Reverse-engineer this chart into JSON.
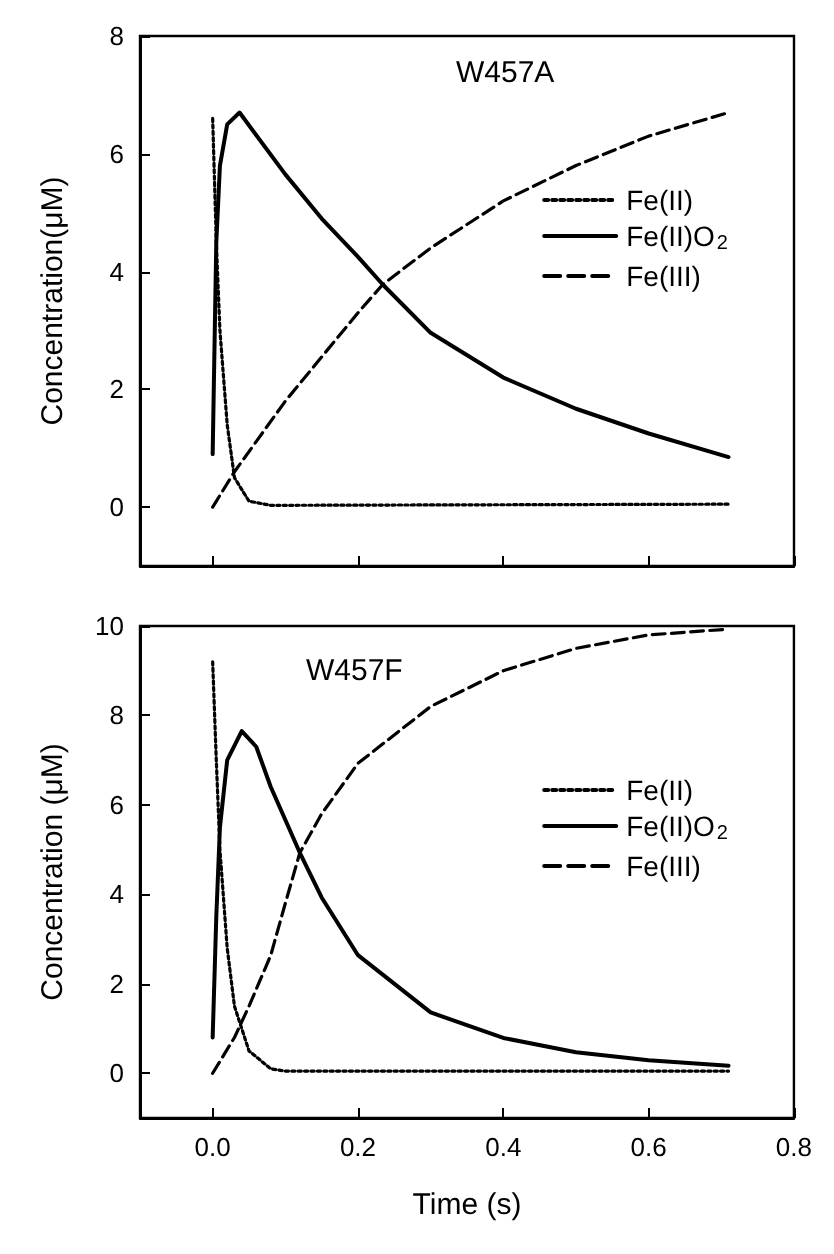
{
  "chart_data": [
    {
      "type": "line",
      "title": "W457A",
      "ylabel": "Concentration(μM)",
      "xlim": [
        -0.1,
        0.8
      ],
      "xticks": [
        0,
        0.2,
        0.4,
        0.6,
        0.8
      ],
      "ylim": [
        -1,
        8
      ],
      "yticks": [
        0,
        2,
        4,
        6,
        8
      ],
      "tick_labels": "y",
      "grid": false,
      "legend": "top right",
      "marker": "none",
      "series": [
        {
          "name": "Fe(II)",
          "color": "#000000",
          "line_style": "dotted",
          "x": [
            0,
            0.005,
            0.01,
            0.02,
            0.03,
            0.05,
            0.08,
            0.71
          ],
          "values": [
            6.6,
            4.5,
            3.0,
            1.4,
            0.5,
            0.1,
            0.03,
            0.05
          ]
        },
        {
          "name": "Fe(II)O$_{2}$",
          "color": "#000000",
          "line_style": "solid",
          "x": [
            0,
            0.005,
            0.01,
            0.02,
            0.037,
            0.1,
            0.15,
            0.2,
            0.234,
            0.3,
            0.4,
            0.5,
            0.6,
            0.71
          ],
          "values": [
            0.9,
            4.5,
            5.8,
            6.5,
            6.7,
            5.65,
            4.9,
            4.25,
            3.78,
            2.96,
            2.2,
            1.67,
            1.25,
            0.85
          ]
        },
        {
          "name": "Fe(III)",
          "color": "#000000",
          "line_style": "dashed",
          "x": [
            0,
            0.03,
            0.1,
            0.2,
            0.234,
            0.3,
            0.4,
            0.5,
            0.6,
            0.71
          ],
          "values": [
            0,
            0.6,
            1.8,
            3.3,
            3.78,
            4.4,
            5.2,
            5.8,
            6.3,
            6.7
          ]
        }
      ]
    },
    {
      "type": "line",
      "title": "W457F",
      "xlabel": "Time (s)",
      "ylabel": "Concentration (μM)",
      "xlim": [
        -0.1,
        0.8
      ],
      "xticks": [
        {
          "value": 0,
          "label": "0.0"
        },
        0.2,
        0.4,
        0.6,
        0.8
      ],
      "ylim": [
        -1,
        10
      ],
      "yticks": [
        0,
        2,
        4,
        6,
        8,
        10
      ],
      "grid": false,
      "legend": "top right",
      "marker": "none",
      "series": [
        {
          "name": "Fe(II)",
          "color": "#000000",
          "line_style": "dotted",
          "x": [
            0,
            0.005,
            0.01,
            0.02,
            0.03,
            0.05,
            0.08,
            0.1,
            0.71
          ],
          "values": [
            9.2,
            7.0,
            5.0,
            2.8,
            1.5,
            0.5,
            0.1,
            0.05,
            0.05
          ]
        },
        {
          "name": "Fe(II)O$_{2}$",
          "color": "#000000",
          "line_style": "solid",
          "x": [
            0,
            0.005,
            0.01,
            0.02,
            0.04,
            0.06,
            0.08,
            0.12,
            0.15,
            0.2,
            0.3,
            0.4,
            0.5,
            0.6,
            0.71
          ],
          "values": [
            0.8,
            3.5,
            5.5,
            7.0,
            7.65,
            7.3,
            6.4,
            4.93,
            3.93,
            2.64,
            1.36,
            0.79,
            0.47,
            0.29,
            0.17
          ]
        },
        {
          "name": "Fe(III)",
          "color": "#000000",
          "line_style": "dashed",
          "x": [
            0,
            0.03,
            0.05,
            0.08,
            0.1,
            0.12,
            0.15,
            0.2,
            0.3,
            0.4,
            0.5,
            0.6,
            0.71
          ],
          "values": [
            0,
            0.8,
            1.5,
            2.64,
            3.8,
            4.93,
            5.8,
            6.93,
            8.2,
            9.0,
            9.5,
            9.8,
            9.93
          ]
        }
      ]
    }
  ]
}
